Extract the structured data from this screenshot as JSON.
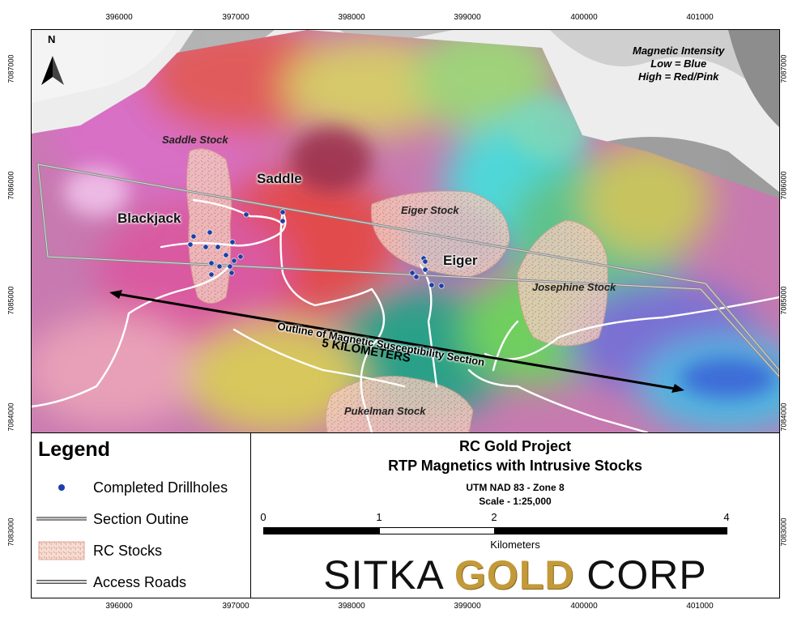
{
  "map": {
    "north_label": "N",
    "coords_x": [
      "396000",
      "397000",
      "398000",
      "399000",
      "400000",
      "401000"
    ],
    "coords_y": [
      "7087000",
      "7086000",
      "7085000",
      "7084000",
      "7083000"
    ],
    "intensity_note": {
      "line1": "Magnetic Intensity",
      "line2": "Low = Blue",
      "line3": "High = Red/Pink"
    },
    "stocks": {
      "saddle": "Saddle Stock",
      "eiger": "Eiger Stock",
      "josephine": "Josephine Stock",
      "pukelman": "Pukelman Stock"
    },
    "areas": {
      "saddle": "Saddle",
      "blackjack": "Blackjack",
      "eiger": "Eiger"
    },
    "section_label": "Outline of Magnetic Susceptibility Section",
    "distance_label": "5 KILOMETERS",
    "colors": {
      "drillhole": "#1f3fa6",
      "stock_fill": "#f0c8b8",
      "road": "#ffffff"
    }
  },
  "legend": {
    "title": "Legend",
    "items": [
      {
        "icon": "drillhole-dot-icon",
        "label": "Completed Drillholes"
      },
      {
        "icon": "section-outline-icon",
        "label": "Section Outine"
      },
      {
        "icon": "stock-pattern-icon",
        "label": "RC Stocks"
      },
      {
        "icon": "road-line-icon",
        "label": "Access Roads"
      }
    ]
  },
  "title_block": {
    "project": "RC Gold Project",
    "subtitle": "RTP Magnetics with Intrusive Stocks",
    "projection": "UTM NAD 83 - Zone 8",
    "scale": "Scale - 1:25,000",
    "scale_ticks": [
      "0",
      "1",
      "2",
      "4"
    ],
    "units": "Kilometers",
    "company": {
      "word1": "SITKA ",
      "word2": "GOLD",
      "word3": " CORP"
    }
  }
}
